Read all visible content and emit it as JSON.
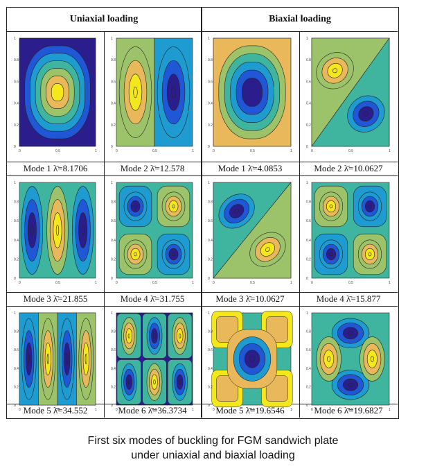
{
  "table": {
    "header_uniaxial": "Uniaxial loading",
    "header_biaxial": "Biaxial loading",
    "cells": [
      {
        "caption": "Mode 1 λ̄=8.1706",
        "pattern": "m1"
      },
      {
        "caption": "Mode 2 λ̄=12.578",
        "pattern": "m2"
      },
      {
        "caption": "Mode 1 λ̄=4.0853",
        "pattern": "b1"
      },
      {
        "caption": "Mode 2 λ̄=10.0627",
        "pattern": "b2"
      },
      {
        "caption": "Mode 3 λ̄=21.855",
        "pattern": "m3"
      },
      {
        "caption": "Mode 4 λ̄=31.755",
        "pattern": "m4"
      },
      {
        "caption": "Mode 3 λ̄=10.0627",
        "pattern": "b3"
      },
      {
        "caption": "Mode 4 λ̄=15.877",
        "pattern": "b4"
      },
      {
        "caption": "Mode 5 λ̄=34.552",
        "pattern": "m5"
      },
      {
        "caption": "Mode 6 λ̄=36.3734",
        "pattern": "m6"
      },
      {
        "caption": "Mode 5 λ̄=19.6546",
        "pattern": "b5"
      },
      {
        "caption": "Mode 6 λ̄=19.6827",
        "pattern": "b6"
      }
    ]
  },
  "caption": {
    "line1": "First six  modes of buckling for FGM sandwich plate",
    "line2": "under uniaxial and biaxial loading"
  },
  "colors": {
    "deep_blue": "#2b1e8c",
    "blue": "#1f57d6",
    "teal": "#1e9bd0",
    "green": "#3fb5a0",
    "olive": "#9cc26a",
    "orange": "#e8b85a",
    "yellow": "#f4e71c"
  }
}
